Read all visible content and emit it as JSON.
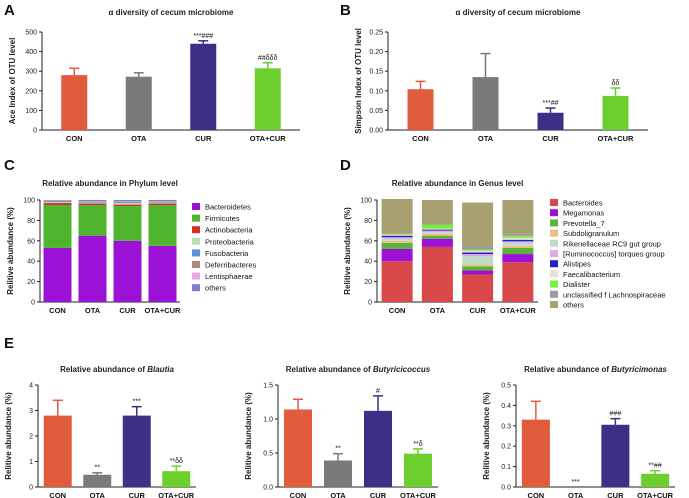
{
  "colors": {
    "CON": "#e05c3d",
    "OTA": "#7a7a7a",
    "CUR": "#3d2e86",
    "OTA+CUR": "#6ccf2e"
  },
  "panels": [
    {
      "label": "A"
    },
    {
      "label": "B"
    },
    {
      "label": "C"
    },
    {
      "label": "D"
    },
    {
      "label": "E"
    }
  ],
  "chart_data": [
    {
      "id": "A",
      "type": "bar",
      "title": "α diversity of cecum microbiome",
      "ylabel": "Ace Index of OTU level",
      "categories": [
        "CON",
        "OTA",
        "CUR",
        "OTA+CUR"
      ],
      "values": [
        280,
        272,
        440,
        315
      ],
      "errors": [
        35,
        20,
        15,
        28
      ],
      "annotations": [
        "",
        "",
        "***###",
        "##δδδ"
      ],
      "ylim": [
        0,
        500
      ],
      "yticks": [
        "0",
        "100",
        "200",
        "300",
        "400",
        "500"
      ]
    },
    {
      "id": "B",
      "type": "bar",
      "title": "α diversity of cecum microbiome",
      "ylabel": "Simpson Index of OTU level",
      "categories": [
        "CON",
        "OTA",
        "CUR",
        "OTA+CUR"
      ],
      "values": [
        0.104,
        0.135,
        0.044,
        0.087
      ],
      "errors": [
        0.02,
        0.06,
        0.012,
        0.02
      ],
      "annotations": [
        "",
        "",
        "***##",
        "δδ"
      ],
      "ylim": [
        0,
        0.25
      ],
      "yticks": [
        "0.00",
        "0.05",
        "0.10",
        "0.15",
        "0.20",
        "0.25"
      ]
    },
    {
      "id": "C",
      "type": "bar",
      "stacked": true,
      "title": "Relative abundance in Phylum level",
      "ylabel": "Relitive abundance (%)",
      "categories": [
        "CON",
        "OTA",
        "CUR",
        "OTA+CUR"
      ],
      "ylim": [
        0,
        100
      ],
      "yticks": [
        "0",
        "20",
        "40",
        "60",
        "80",
        "100"
      ],
      "series": [
        {
          "name": "Bacteroidetes",
          "color": "#9b12d6",
          "values": [
            53,
            65,
            60,
            55
          ]
        },
        {
          "name": "Firmicutes",
          "color": "#4fb52e",
          "values": [
            42,
            30,
            34,
            40
          ]
        },
        {
          "name": "Actinobacteria",
          "color": "#d62e26",
          "values": [
            2,
            1.5,
            1.5,
            1.5
          ]
        },
        {
          "name": "Proteobacteria",
          "color": "#b8e0b0",
          "values": [
            1,
            1,
            1.5,
            1
          ]
        },
        {
          "name": "Fusobacteria",
          "color": "#5e8fe0",
          "values": [
            0.6,
            0.6,
            0.6,
            0.6
          ]
        },
        {
          "name": "Deferribacteres",
          "color": "#b08a7a",
          "values": [
            0.5,
            0.5,
            0.6,
            0.5
          ]
        },
        {
          "name": "Lentisphaerae",
          "color": "#e8a8e0",
          "values": [
            0.4,
            0.4,
            0.4,
            0.4
          ]
        },
        {
          "name": "others",
          "color": "#7f7fd0",
          "values": [
            0.5,
            1,
            1.4,
            1
          ]
        }
      ]
    },
    {
      "id": "D",
      "type": "bar",
      "stacked": true,
      "title": "Relative abundance in Genus level",
      "ylabel": "Relitive abundance (%)",
      "categories": [
        "CON",
        "OTA",
        "CUR",
        "OTA+CUR"
      ],
      "ylim": [
        0,
        100
      ],
      "yticks": [
        "0",
        "20",
        "40",
        "60",
        "80",
        "100"
      ],
      "series": [
        {
          "name": "Bacteroides",
          "color": "#d94848",
          "values": [
            40,
            54,
            27,
            39
          ]
        },
        {
          "name": "Megamonas",
          "color": "#9b12d6",
          "values": [
            12,
            8,
            4,
            8
          ]
        },
        {
          "name": "Prevotella_7",
          "color": "#5db33a",
          "values": [
            6,
            3,
            4,
            6
          ]
        },
        {
          "name": "Subdoligranulum",
          "color": "#e8c080",
          "values": [
            2,
            2,
            2,
            2
          ]
        },
        {
          "name": "Rikenellaceae RC9 gut group",
          "color": "#c0dcc8",
          "values": [
            2,
            1.5,
            8,
            3
          ]
        },
        {
          "name": "[Ruminococcus] torques group",
          "color": "#e0a8e8",
          "values": [
            1.5,
            1.5,
            2,
            1.5
          ]
        },
        {
          "name": "Alistipes",
          "color": "#2020c8",
          "values": [
            1.5,
            1,
            1.5,
            1.5
          ]
        },
        {
          "name": "Faecalibacterium",
          "color": "#e8e0d0",
          "values": [
            1,
            1,
            2,
            2
          ]
        },
        {
          "name": "Dialister",
          "color": "#7aee3a",
          "values": [
            0.5,
            4,
            1,
            2
          ]
        },
        {
          "name": "unclassified f Lachnospiraceae",
          "color": "#9a9a9a",
          "values": [
            0.5,
            1,
            3,
            2
          ]
        },
        {
          "name": "others",
          "color": "#a8a070",
          "values": [
            34,
            23,
            43,
            33
          ]
        }
      ]
    },
    {
      "id": "E1",
      "type": "bar",
      "title": "Relative abundance of Blautia",
      "title_prefix": "Relative abundance of ",
      "title_italic": "Blautia",
      "ylabel": "Relitive abundance (%)",
      "categories": [
        "CON",
        "OTA",
        "CUR",
        "OTA+CUR"
      ],
      "values": [
        2.8,
        0.48,
        2.8,
        0.62
      ],
      "errors": [
        0.6,
        0.08,
        0.35,
        0.2
      ],
      "annotations": [
        "",
        "**",
        "***",
        "**δδ"
      ],
      "ylim": [
        0,
        4
      ],
      "yticks": [
        "0",
        "1",
        "2",
        "3",
        "4"
      ]
    },
    {
      "id": "E2",
      "type": "bar",
      "title": "Relative abundance of Butyricicoccus",
      "title_prefix": "Relative abundance of ",
      "title_italic": "Butyricicoccus",
      "ylabel": "Relitive abundance (%)",
      "categories": [
        "CON",
        "OTA",
        "CUR",
        "OTA+CUR"
      ],
      "values": [
        1.14,
        0.39,
        1.12,
        0.49
      ],
      "errors": [
        0.15,
        0.1,
        0.22,
        0.07
      ],
      "annotations": [
        "",
        "**",
        "#",
        "**δ"
      ],
      "ylim": [
        0,
        1.5
      ],
      "yticks": [
        "0.0",
        "0.5",
        "1.0",
        "1.5"
      ]
    },
    {
      "id": "E3",
      "type": "bar",
      "title": "Relative abundance of Butyricimonas",
      "title_prefix": "Relative abundance of ",
      "title_italic": "Butyricimonas",
      "ylabel": "Relitive abundance (%)",
      "categories": [
        "CON",
        "OTA",
        "CUR",
        "OTA+CUR"
      ],
      "values": [
        0.33,
        0.0,
        0.305,
        0.065
      ],
      "errors": [
        0.09,
        0.0,
        0.03,
        0.015
      ],
      "annotations": [
        "",
        "***",
        "###",
        "**##"
      ],
      "ylim": [
        0,
        0.5
      ],
      "yticks": [
        "0.0",
        "0.1",
        "0.2",
        "0.3",
        "0.4",
        "0.5"
      ]
    }
  ]
}
